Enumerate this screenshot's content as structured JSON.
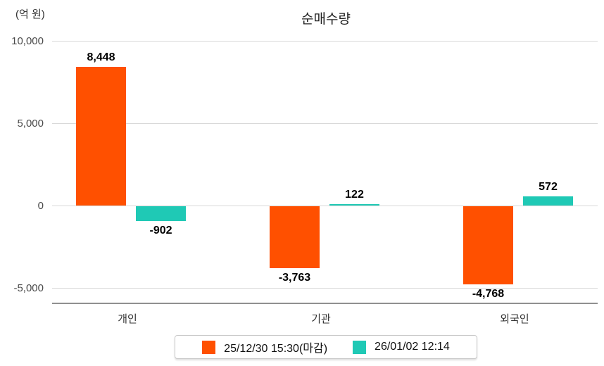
{
  "title": "순매수량",
  "unit_label": "(억 원)",
  "chart_data": {
    "type": "bar",
    "title": "순매수량",
    "unit": "억 원",
    "categories": [
      "개인",
      "기관",
      "외국인"
    ],
    "series": [
      {
        "name": "25/12/30 15:30(마감)",
        "color": "#FF5000",
        "values": [
          8448,
          -3763,
          -4768
        ],
        "labels": [
          "8,448",
          "-3,763",
          "-4,768"
        ]
      },
      {
        "name": "26/01/02 12:14",
        "color": "#1FC9B5",
        "values": [
          -902,
          122,
          572
        ],
        "labels": [
          "-902",
          "122",
          "572"
        ]
      }
    ],
    "y_axis": {
      "ticks": [
        10000,
        5000,
        0,
        -5000
      ],
      "tick_labels": [
        "10,000",
        "5,000",
        "0",
        "-5,000"
      ],
      "range": [
        -6000,
        10000
      ],
      "grid": true
    },
    "legend_position": "bottom",
    "colors": {
      "grid": "#d9d9d9",
      "axis": "#909090",
      "value_label": "#000000",
      "tick_label": "#4a4a4a"
    }
  }
}
